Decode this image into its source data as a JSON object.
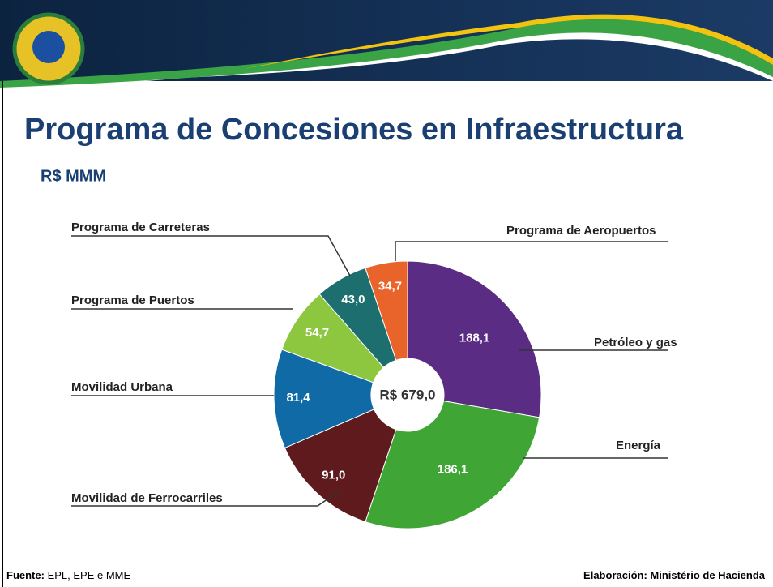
{
  "header": {
    "title": "Programa de Concesiones en Infraestructura",
    "subtitle": "R$ MMM"
  },
  "chart_data": {
    "type": "donut",
    "categories": [
      "Petróleo y gas",
      "Energía",
      "Movilidad de Ferrocarriles",
      "Movilidad Urbana",
      "Programa de Puertos",
      "Programa de Carreteras",
      "Programa de Aeropuertos"
    ],
    "values": [
      188.1,
      186.1,
      91.0,
      81.4,
      54.7,
      43.0,
      34.7
    ],
    "value_labels": [
      "188,1",
      "186,1",
      "91,0",
      "81,4",
      "54,7",
      "43,0",
      "34,7"
    ],
    "colors": [
      "#5b2c83",
      "#3fa535",
      "#5e1a1d",
      "#0f6aa6",
      "#8dc63f",
      "#1d6e6e",
      "#e8642a"
    ],
    "center_label": "R$ 679,0"
  },
  "footer": {
    "source_label": "Fuente:",
    "source": "EPL, EPE e MME",
    "credit": "Elaboración: Ministério de Hacienda"
  }
}
